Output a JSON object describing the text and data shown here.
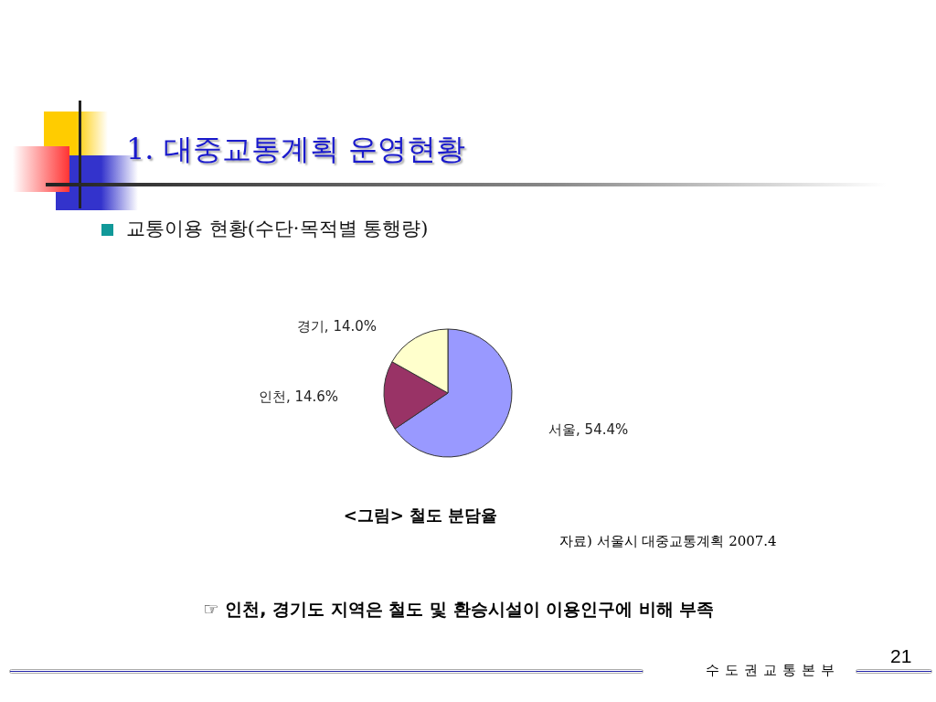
{
  "chart_data": {
    "type": "pie",
    "title": "1. 대중교통계획 운영현황",
    "subtitle": "교통이용 현황(수단·목적별 통행량)",
    "categories": [
      "서울",
      "인천",
      "경기"
    ],
    "values": [
      54.4,
      14.6,
      14.0
    ],
    "value_labels": [
      "54.4%",
      "14.6%",
      "14.0%"
    ],
    "colors": [
      "#9999ff",
      "#993366",
      "#ffffcc"
    ],
    "legend": false,
    "annotations": [
      "<그림> 철도 분담율",
      "자료) 서울시 대중교통계획 2007.4",
      "☞ 인천, 경기도 지역은 철도 및 환승시설이 이용인구에 비해 부족",
      "수도권교통본부",
      "21"
    ]
  }
}
